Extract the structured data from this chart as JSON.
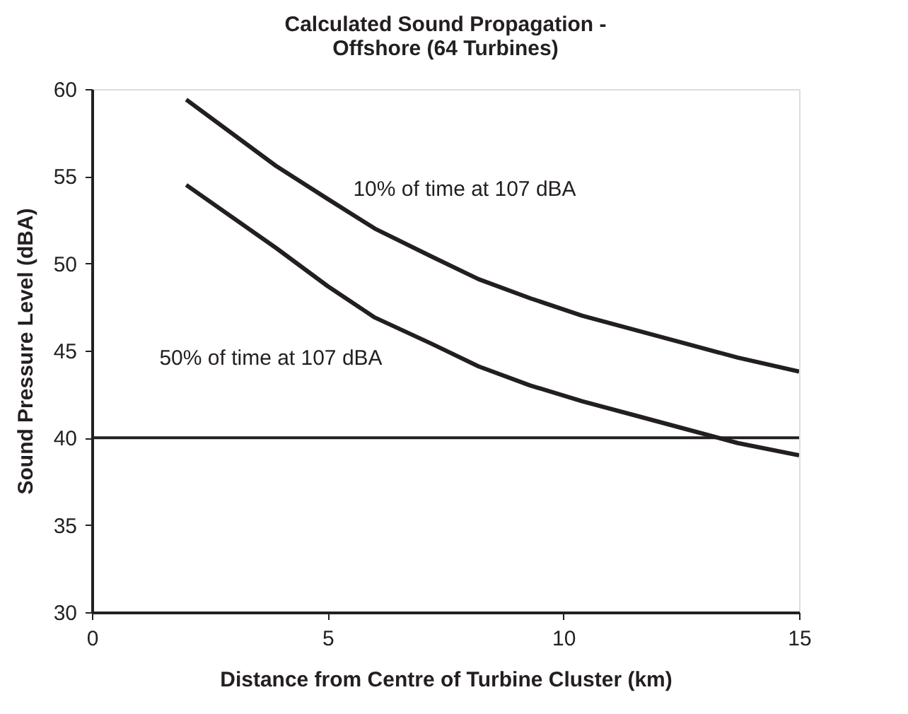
{
  "chart_data": {
    "type": "line",
    "title": [
      "Calculated Sound Propagation -",
      "Offshore (64 Turbines)"
    ],
    "xlabel": "Distance from Centre of Turbine Cluster (km)",
    "ylabel": "Sound Pressure Level (dBA)",
    "xlim": [
      0,
      15
    ],
    "xticks": [
      0,
      5,
      10,
      15
    ],
    "ylim": [
      30,
      60
    ],
    "yticks": [
      30,
      35,
      40,
      45,
      50,
      55,
      60
    ],
    "grid": false,
    "marker": "none",
    "line_style": "solid",
    "series": [
      {
        "color": "#231f20",
        "x": [
          2,
          3.9,
          5,
          6,
          7.2,
          8.2,
          9.3,
          10.4,
          11.5,
          12.6,
          13.7,
          15
        ],
        "values": [
          59.4,
          55.6,
          53.7,
          52.0,
          50.4,
          49.1,
          48.0,
          47.0,
          46.2,
          45.4,
          44.6,
          43.8
        ]
      },
      {
        "color": "#231f20",
        "x": [
          2,
          3.9,
          5,
          6,
          7.2,
          8.2,
          9.3,
          10.4,
          11.5,
          12.6,
          13.7,
          15
        ],
        "values": [
          54.5,
          50.9,
          48.7,
          46.9,
          45.4,
          44.1,
          43.0,
          42.1,
          41.3,
          40.5,
          39.7,
          39.0
        ]
      }
    ],
    "ref_lines": [
      {
        "axis": "y",
        "value": 40,
        "color": "#231f20",
        "line_style": "solid"
      }
    ],
    "annotations": [
      "10% of time at 107 dBA",
      "50% of time at 107 dBA"
    ]
  }
}
